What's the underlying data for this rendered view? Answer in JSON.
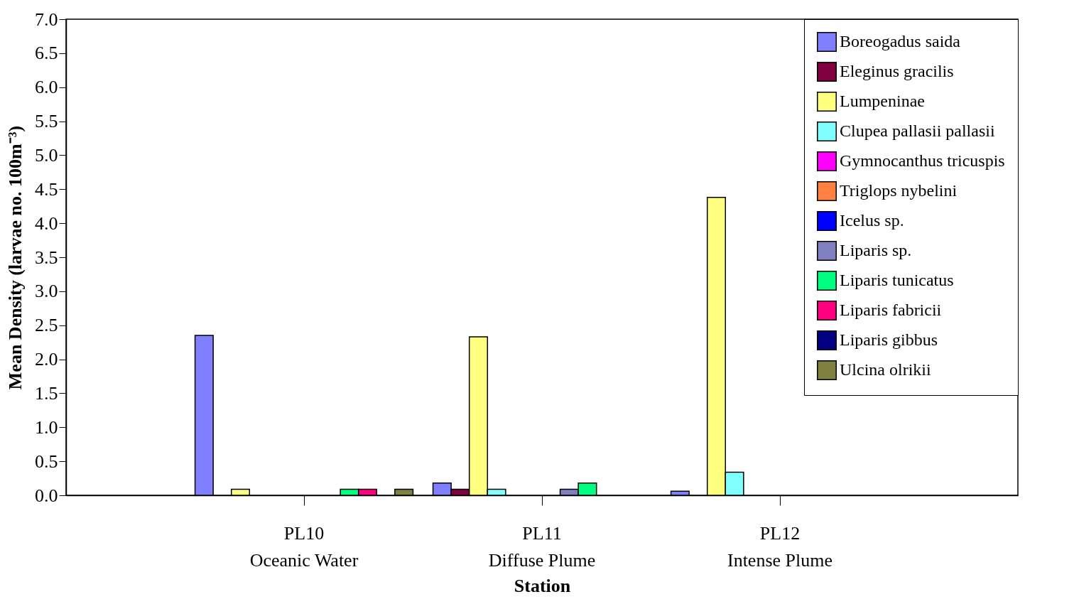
{
  "chart_data": {
    "type": "bar",
    "xlabel": "Station",
    "ylabel": "Mean Density (larvae no. 100m⁻³)",
    "categories": [
      "PL10\nOceanic Water",
      "PL11\nDiffuse Plume",
      "PL12\nIntense Plume"
    ],
    "ylim": [
      0,
      7
    ],
    "yticks": [
      {
        "value": 0,
        "label": "0.0"
      },
      {
        "value": 0.5,
        "label": "0.5"
      },
      {
        "value": 1,
        "label": "1.0"
      },
      {
        "value": 1.5,
        "label": "1.5"
      },
      {
        "value": 2,
        "label": "2.0"
      },
      {
        "value": 2.5,
        "label": "2.5"
      },
      {
        "value": 3,
        "label": "3.0"
      },
      {
        "value": 3.5,
        "label": "3.5"
      },
      {
        "value": 4,
        "label": "4.0"
      },
      {
        "value": 4.5,
        "label": "4.5"
      },
      {
        "value": 5,
        "label": "5.0"
      },
      {
        "value": 5.5,
        "label": "5.5"
      },
      {
        "value": 6,
        "label": "6.0"
      },
      {
        "value": 6.5,
        "label": "6.5"
      },
      {
        "value": 7,
        "label": "7.0"
      }
    ],
    "legend": "top right",
    "grid": false,
    "series": [
      {
        "name": "Boreogadus saida",
        "color": "#8080ff",
        "values": [
          2.35,
          0.18,
          0.06
        ]
      },
      {
        "name": "Eleginus gracilis",
        "color": "#800040",
        "values": [
          null,
          0.09,
          null
        ]
      },
      {
        "name": "Lumpeninae",
        "color": "#ffff80",
        "values": [
          0.09,
          2.33,
          4.38
        ]
      },
      {
        "name": "Clupea pallasii pallasii",
        "color": "#80ffff",
        "values": [
          null,
          0.09,
          0.34
        ]
      },
      {
        "name": "Gymnocanthus tricuspis",
        "color": "#ff00ff",
        "values": [
          null,
          null,
          null
        ]
      },
      {
        "name": "Triglops nybelini",
        "color": "#ff8040",
        "values": [
          null,
          null,
          null
        ]
      },
      {
        "name": "Icelus sp.",
        "color": "#0000ff",
        "values": [
          null,
          null,
          null
        ]
      },
      {
        "name": "Liparis sp.",
        "color": "#8080c0",
        "values": [
          null,
          0.09,
          null
        ]
      },
      {
        "name": "Liparis tunicatus",
        "color": "#00ff80",
        "values": [
          0.09,
          0.18,
          null
        ]
      },
      {
        "name": "Liparis fabricii",
        "color": "#ff0080",
        "values": [
          0.09,
          null,
          null
        ]
      },
      {
        "name": "Liparis gibbus",
        "color": "#000080",
        "values": [
          null,
          null,
          null
        ]
      },
      {
        "name": "Ulcina olrikii",
        "color": "#808040",
        "values": [
          0.09,
          null,
          null
        ]
      }
    ]
  }
}
